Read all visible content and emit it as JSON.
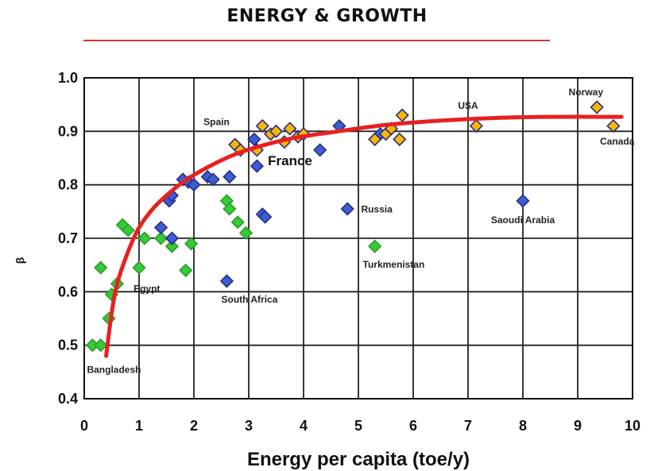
{
  "chart_data": {
    "type": "scatter",
    "title": "ENERGY & GROWTH",
    "xlabel": "Energy per capita (toe/y)",
    "ylabel": "β",
    "xlim": [
      0,
      10
    ],
    "ylim": [
      0.4,
      1.0
    ],
    "x_ticks": [
      0,
      1,
      2,
      3,
      4,
      5,
      6,
      7,
      8,
      9,
      10
    ],
    "y_ticks": [
      0.4,
      0.5,
      0.6,
      0.7,
      0.8,
      0.9,
      1.0
    ],
    "y_tick_labels": [
      "0.4",
      "0.5",
      "0.6",
      "0.7",
      "0.8",
      "0.9",
      "1.0"
    ],
    "grid": true,
    "colors": {
      "green": "#33cc33",
      "blue": "#3a5fcf",
      "gold": "#f5b800",
      "marker_edge": "#2a2a88",
      "curve": "#e82020",
      "title_rule": "#e23030"
    },
    "series": [
      {
        "color": "green",
        "points": [
          [
            0.15,
            0.5
          ],
          [
            0.3,
            0.5
          ],
          [
            0.3,
            0.645
          ],
          [
            0.45,
            0.55
          ],
          [
            0.5,
            0.595
          ],
          [
            0.6,
            0.615
          ],
          [
            0.7,
            0.725
          ],
          [
            0.8,
            0.715
          ],
          [
            1.0,
            0.645
          ],
          [
            1.1,
            0.7
          ],
          [
            1.4,
            0.7
          ],
          [
            1.6,
            0.685
          ],
          [
            1.85,
            0.64
          ],
          [
            1.95,
            0.69
          ],
          [
            2.6,
            0.77
          ],
          [
            2.65,
            0.755
          ],
          [
            2.8,
            0.73
          ],
          [
            2.95,
            0.71
          ],
          [
            5.3,
            0.685
          ]
        ]
      },
      {
        "color": "blue",
        "points": [
          [
            1.4,
            0.72
          ],
          [
            1.55,
            0.77
          ],
          [
            1.6,
            0.78
          ],
          [
            1.6,
            0.7
          ],
          [
            1.8,
            0.81
          ],
          [
            1.9,
            0.805
          ],
          [
            2.0,
            0.8
          ],
          [
            2.25,
            0.815
          ],
          [
            2.35,
            0.81
          ],
          [
            2.65,
            0.815
          ],
          [
            2.6,
            0.62
          ],
          [
            3.15,
            0.835
          ],
          [
            3.1,
            0.885
          ],
          [
            3.25,
            0.745
          ],
          [
            3.3,
            0.74
          ],
          [
            4.3,
            0.865
          ],
          [
            4.65,
            0.91
          ],
          [
            4.8,
            0.755
          ],
          [
            5.4,
            0.895
          ],
          [
            8.0,
            0.77
          ]
        ]
      },
      {
        "color": "gold",
        "points": [
          [
            2.75,
            0.875
          ],
          [
            2.85,
            0.865
          ],
          [
            3.15,
            0.865
          ],
          [
            3.25,
            0.91
          ],
          [
            3.4,
            0.895
          ],
          [
            3.5,
            0.9
          ],
          [
            3.65,
            0.88
          ],
          [
            3.75,
            0.905
          ],
          [
            3.9,
            0.89
          ],
          [
            4.0,
            0.895
          ],
          [
            5.3,
            0.885
          ],
          [
            5.5,
            0.895
          ],
          [
            5.6,
            0.905
          ],
          [
            5.75,
            0.885
          ],
          [
            5.8,
            0.93
          ],
          [
            7.15,
            0.91
          ],
          [
            9.35,
            0.945
          ],
          [
            9.65,
            0.91
          ]
        ]
      }
    ],
    "fit_curve": [
      [
        0.4,
        0.48
      ],
      [
        0.5,
        0.56
      ],
      [
        0.6,
        0.615
      ],
      [
        0.8,
        0.675
      ],
      [
        1.0,
        0.72
      ],
      [
        1.25,
        0.755
      ],
      [
        1.5,
        0.78
      ],
      [
        1.8,
        0.805
      ],
      [
        2.2,
        0.83
      ],
      [
        2.7,
        0.855
      ],
      [
        3.2,
        0.872
      ],
      [
        3.8,
        0.887
      ],
      [
        4.5,
        0.898
      ],
      [
        5.5,
        0.912
      ],
      [
        6.5,
        0.92
      ],
      [
        7.5,
        0.925
      ],
      [
        8.5,
        0.927
      ],
      [
        9.8,
        0.927
      ]
    ],
    "annotations": [
      {
        "text": "Spain",
        "x": 2.65,
        "y": 0.912,
        "size": "small",
        "anchor": "end"
      },
      {
        "text": "France",
        "x": 3.35,
        "y": 0.837,
        "size": "large",
        "anchor": "start"
      },
      {
        "text": "USA",
        "x": 7.0,
        "y": 0.942,
        "size": "small",
        "anchor": "middle"
      },
      {
        "text": "Norway",
        "x": 9.15,
        "y": 0.967,
        "size": "small",
        "anchor": "middle"
      },
      {
        "text": "Canada",
        "x": 9.72,
        "y": 0.875,
        "size": "small",
        "anchor": "middle"
      },
      {
        "text": "Russia",
        "x": 5.05,
        "y": 0.748,
        "size": "small",
        "anchor": "start"
      },
      {
        "text": "Saoudi Arabia",
        "x": 8.0,
        "y": 0.728,
        "size": "small",
        "anchor": "middle"
      },
      {
        "text": "Turkmenistan",
        "x": 5.08,
        "y": 0.645,
        "size": "small",
        "anchor": "start"
      },
      {
        "text": "Egypt",
        "x": 0.9,
        "y": 0.6,
        "size": "small",
        "anchor": "start"
      },
      {
        "text": "South Africa",
        "x": 2.5,
        "y": 0.58,
        "size": "small",
        "anchor": "start"
      },
      {
        "text": "Bangladesh",
        "x": 0.05,
        "y": 0.448,
        "size": "small",
        "anchor": "start"
      }
    ]
  }
}
